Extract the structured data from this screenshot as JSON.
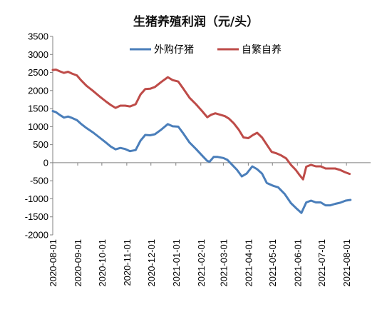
{
  "chart_data": {
    "type": "line",
    "title": "生猪养殖利润（元/头）",
    "xlabel": "",
    "ylabel": "",
    "ylim": [
      -2000,
      3500
    ],
    "y_ticks": [
      -2000,
      -1500,
      -1000,
      -500,
      0,
      500,
      1000,
      1500,
      2000,
      2500,
      3000,
      3500
    ],
    "x_range": [
      "2020-08-01",
      "2021-08-31"
    ],
    "x_tick_labels": [
      "2020-08-01",
      "2020-09-01",
      "2020-10-01",
      "2020-11-01",
      "2020-12-01",
      "2021-01-01",
      "2021-02-01",
      "2021-03-01",
      "2021-04-01",
      "2021-05-01",
      "2021-06-01",
      "2021-07-01",
      "2021-08-01"
    ],
    "grid": false,
    "legend_position": "top",
    "series": [
      {
        "name": "外购仔猪",
        "color": "#4a7eba",
        "points": [
          [
            "2020-08-01",
            1430
          ],
          [
            "2020-08-05",
            1400
          ],
          [
            "2020-08-10",
            1320
          ],
          [
            "2020-08-15",
            1250
          ],
          [
            "2020-08-20",
            1280
          ],
          [
            "2020-08-25",
            1240
          ],
          [
            "2020-08-31",
            1180
          ],
          [
            "2020-09-05",
            1080
          ],
          [
            "2020-09-12",
            960
          ],
          [
            "2020-09-20",
            840
          ],
          [
            "2020-09-28",
            700
          ],
          [
            "2020-10-06",
            560
          ],
          [
            "2020-10-12",
            450
          ],
          [
            "2020-10-18",
            370
          ],
          [
            "2020-10-24",
            410
          ],
          [
            "2020-10-30",
            380
          ],
          [
            "2020-11-05",
            320
          ],
          [
            "2020-11-12",
            350
          ],
          [
            "2020-11-18",
            610
          ],
          [
            "2020-11-24",
            770
          ],
          [
            "2020-11-30",
            760
          ],
          [
            "2020-12-06",
            790
          ],
          [
            "2020-12-14",
            920
          ],
          [
            "2020-12-22",
            1070
          ],
          [
            "2020-12-28",
            1010
          ],
          [
            "2021-01-04",
            1000
          ],
          [
            "2021-01-10",
            820
          ],
          [
            "2021-01-18",
            560
          ],
          [
            "2021-01-26",
            380
          ],
          [
            "2021-02-03",
            190
          ],
          [
            "2021-02-09",
            50
          ],
          [
            "2021-02-12",
            30
          ],
          [
            "2021-02-17",
            160
          ],
          [
            "2021-02-22",
            160
          ],
          [
            "2021-03-01",
            130
          ],
          [
            "2021-03-06",
            80
          ],
          [
            "2021-03-12",
            -60
          ],
          [
            "2021-03-18",
            -200
          ],
          [
            "2021-03-24",
            -380
          ],
          [
            "2021-03-30",
            -300
          ],
          [
            "2021-04-06",
            -100
          ],
          [
            "2021-04-12",
            -180
          ],
          [
            "2021-04-18",
            -300
          ],
          [
            "2021-04-24",
            -560
          ],
          [
            "2021-05-02",
            -640
          ],
          [
            "2021-05-08",
            -680
          ],
          [
            "2021-05-16",
            -860
          ],
          [
            "2021-05-24",
            -1120
          ],
          [
            "2021-05-30",
            -1250
          ],
          [
            "2021-06-06",
            -1390
          ],
          [
            "2021-06-12",
            -1100
          ],
          [
            "2021-06-18",
            -1050
          ],
          [
            "2021-06-24",
            -1100
          ],
          [
            "2021-06-30",
            -1100
          ],
          [
            "2021-07-06",
            -1180
          ],
          [
            "2021-07-12",
            -1180
          ],
          [
            "2021-07-18",
            -1140
          ],
          [
            "2021-07-24",
            -1110
          ],
          [
            "2021-07-31",
            -1050
          ],
          [
            "2021-08-06",
            -1030
          ]
        ]
      },
      {
        "name": "自繁自养",
        "color": "#be4b48",
        "points": [
          [
            "2020-08-01",
            2570
          ],
          [
            "2020-08-05",
            2580
          ],
          [
            "2020-08-10",
            2530
          ],
          [
            "2020-08-15",
            2490
          ],
          [
            "2020-08-20",
            2520
          ],
          [
            "2020-08-25",
            2470
          ],
          [
            "2020-08-31",
            2420
          ],
          [
            "2020-09-05",
            2290
          ],
          [
            "2020-09-12",
            2130
          ],
          [
            "2020-09-20",
            1990
          ],
          [
            "2020-09-28",
            1840
          ],
          [
            "2020-10-06",
            1700
          ],
          [
            "2020-10-12",
            1600
          ],
          [
            "2020-10-18",
            1520
          ],
          [
            "2020-10-24",
            1580
          ],
          [
            "2020-10-30",
            1580
          ],
          [
            "2020-11-05",
            1560
          ],
          [
            "2020-11-12",
            1620
          ],
          [
            "2020-11-18",
            1890
          ],
          [
            "2020-11-24",
            2040
          ],
          [
            "2020-11-30",
            2050
          ],
          [
            "2020-12-06",
            2100
          ],
          [
            "2020-12-14",
            2240
          ],
          [
            "2020-12-22",
            2370
          ],
          [
            "2020-12-28",
            2290
          ],
          [
            "2021-01-04",
            2250
          ],
          [
            "2021-01-10",
            2060
          ],
          [
            "2021-01-18",
            1800
          ],
          [
            "2021-01-26",
            1620
          ],
          [
            "2021-02-03",
            1420
          ],
          [
            "2021-02-09",
            1260
          ],
          [
            "2021-02-14",
            1330
          ],
          [
            "2021-02-19",
            1370
          ],
          [
            "2021-02-25",
            1330
          ],
          [
            "2021-03-03",
            1290
          ],
          [
            "2021-03-08",
            1220
          ],
          [
            "2021-03-14",
            1090
          ],
          [
            "2021-03-20",
            920
          ],
          [
            "2021-03-26",
            700
          ],
          [
            "2021-04-01",
            680
          ],
          [
            "2021-04-07",
            770
          ],
          [
            "2021-04-12",
            830
          ],
          [
            "2021-04-18",
            700
          ],
          [
            "2021-04-24",
            500
          ],
          [
            "2021-04-30",
            300
          ],
          [
            "2021-05-06",
            260
          ],
          [
            "2021-05-12",
            200
          ],
          [
            "2021-05-18",
            120
          ],
          [
            "2021-05-24",
            -60
          ],
          [
            "2021-05-30",
            -200
          ],
          [
            "2021-06-04",
            -350
          ],
          [
            "2021-06-08",
            -460
          ],
          [
            "2021-06-12",
            -110
          ],
          [
            "2021-06-18",
            -60
          ],
          [
            "2021-06-24",
            -100
          ],
          [
            "2021-06-30",
            -100
          ],
          [
            "2021-07-06",
            -160
          ],
          [
            "2021-07-12",
            -160
          ],
          [
            "2021-07-18",
            -160
          ],
          [
            "2021-07-24",
            -200
          ],
          [
            "2021-07-30",
            -260
          ],
          [
            "2021-08-05",
            -310
          ]
        ]
      }
    ]
  }
}
